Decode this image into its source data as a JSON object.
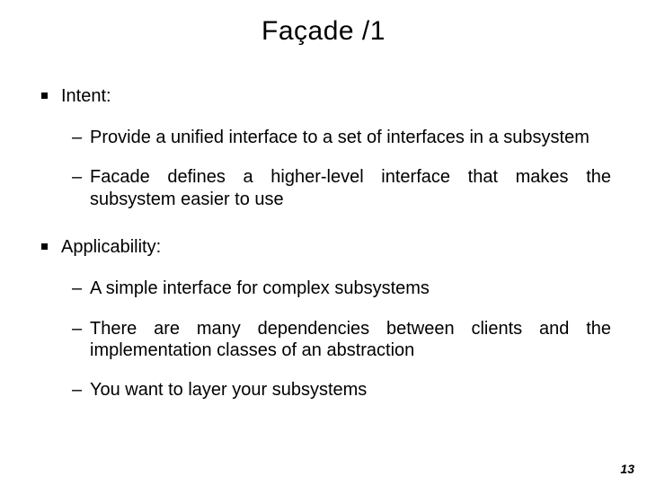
{
  "title": "Façade /1",
  "sections": [
    {
      "heading": "Intent:",
      "items": [
        "Provide a unified interface to a set of interfaces in a subsystem",
        "Facade defines a higher-level interface that makes the subsystem easier to use"
      ]
    },
    {
      "heading": "Applicability:",
      "items": [
        "A simple interface for complex subsystems",
        "There are many dependencies between clients and the implementation classes of an abstraction",
        "You want to layer your subsystems"
      ]
    }
  ],
  "page_number": "13",
  "style": {
    "background_color": "#ffffff",
    "text_color": "#000000",
    "title_fontsize": 30,
    "body_fontsize": 20,
    "pagenum_fontsize": 14,
    "font_family": "Arial"
  }
}
